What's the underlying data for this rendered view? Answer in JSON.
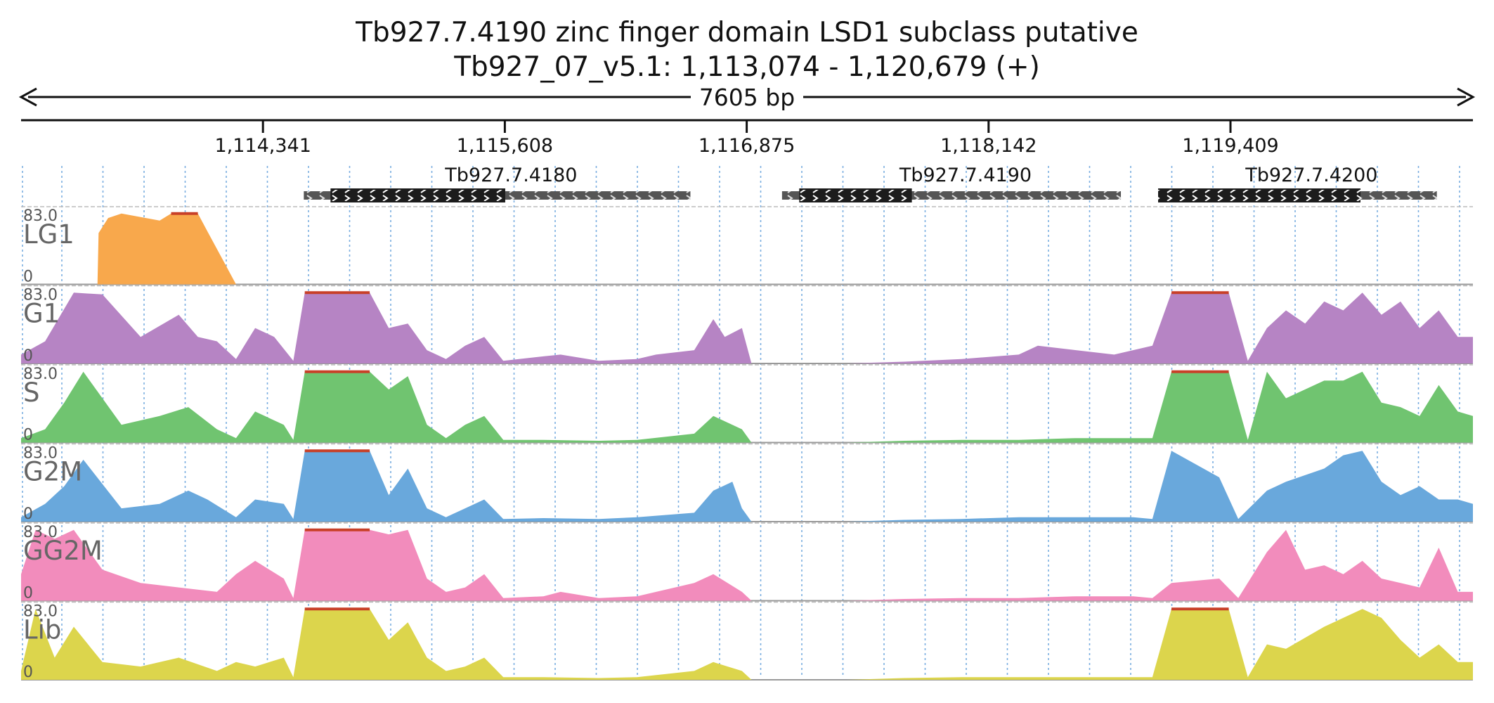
{
  "title_line1": "Tb927.7.4190  zinc finger domain  LSD1 subclass  putative",
  "title_line2": "Tb927_07_v5.1: 1,113,074 - 1,120,679 (+)",
  "span": {
    "label": "7605 bp",
    "start": 1113074,
    "end": 1120679
  },
  "colors": {
    "LG1": "#f8a84c",
    "G1": "#b684c4",
    "S": "#70c470",
    "G2M": "#69a8dc",
    "GG2M": "#f28cbc",
    "Lib": "#dcd54c",
    "clip": "#c84028",
    "gene_cds": "#1c1c1c",
    "gene_utr": "#555555",
    "grid": "#7aaee0"
  },
  "ruler": {
    "ticks": [
      {
        "pos": 1114341,
        "label": "1,114,341"
      },
      {
        "pos": 1115608,
        "label": "1,115,608"
      },
      {
        "pos": 1116875,
        "label": "1,116,875"
      },
      {
        "pos": 1118142,
        "label": "1,118,142"
      },
      {
        "pos": 1119409,
        "label": "1,119,409"
      }
    ]
  },
  "genes": [
    {
      "name": "Tb927.7.4180",
      "start": 1114555,
      "end": 1116580,
      "cds_start": 1114695,
      "cds_end": 1115610
    },
    {
      "name": "Tb927.7.4190",
      "start": 1117060,
      "end": 1118835,
      "cds_start": 1117150,
      "cds_end": 1117740
    },
    {
      "name": "Tb927.7.4200",
      "start": 1119030,
      "end": 1120490,
      "cds_start": 1119030,
      "cds_end": 1120090
    }
  ],
  "tracks": [
    {
      "name": "LG1",
      "ymax": "83.0",
      "ymin": "0"
    },
    {
      "name": "G1",
      "ymax": "83.0",
      "ymin": "0"
    },
    {
      "name": "S",
      "ymax": "83.0",
      "ymin": "0"
    },
    {
      "name": "G2M",
      "ymax": "83.0",
      "ymin": "0"
    },
    {
      "name": "GG2M",
      "ymax": "83.0",
      "ymin": "0"
    },
    {
      "name": "Lib",
      "ymax": "83.0",
      "ymin": "0"
    }
  ],
  "coverage": {
    "ymax": 83,
    "LG1": [
      [
        1113474,
        0
      ],
      [
        1113480,
        58
      ],
      [
        1113530,
        75
      ],
      [
        1113600,
        80
      ],
      [
        1113700,
        76
      ],
      [
        1113800,
        72
      ],
      [
        1113860,
        80
      ],
      [
        1114000,
        80
      ],
      [
        1114050,
        60
      ],
      [
        1114150,
        20
      ],
      [
        1114200,
        0
      ]
    ],
    "G1": [
      [
        1113074,
        10
      ],
      [
        1113200,
        25
      ],
      [
        1113350,
        80
      ],
      [
        1113500,
        78
      ],
      [
        1113700,
        30
      ],
      [
        1113900,
        55
      ],
      [
        1114000,
        30
      ],
      [
        1114100,
        25
      ],
      [
        1114200,
        5
      ],
      [
        1114300,
        40
      ],
      [
        1114400,
        30
      ],
      [
        1114500,
        3
      ],
      [
        1114560,
        80
      ],
      [
        1114900,
        80
      ],
      [
        1115000,
        40
      ],
      [
        1115100,
        45
      ],
      [
        1115200,
        15
      ],
      [
        1115300,
        5
      ],
      [
        1115400,
        20
      ],
      [
        1115500,
        30
      ],
      [
        1115600,
        3
      ],
      [
        1115810,
        8
      ],
      [
        1115900,
        10
      ],
      [
        1116100,
        3
      ],
      [
        1116300,
        5
      ],
      [
        1116400,
        10
      ],
      [
        1116600,
        15
      ],
      [
        1116700,
        50
      ],
      [
        1116760,
        30
      ],
      [
        1116850,
        40
      ],
      [
        1116900,
        0
      ],
      [
        1117400,
        0
      ],
      [
        1117700,
        2
      ],
      [
        1118000,
        5
      ],
      [
        1118300,
        10
      ],
      [
        1118400,
        20
      ],
      [
        1118600,
        15
      ],
      [
        1118800,
        10
      ],
      [
        1119000,
        20
      ],
      [
        1119100,
        80
      ],
      [
        1119400,
        80
      ],
      [
        1119500,
        3
      ],
      [
        1119600,
        40
      ],
      [
        1119700,
        60
      ],
      [
        1119800,
        45
      ],
      [
        1119900,
        70
      ],
      [
        1120000,
        60
      ],
      [
        1120100,
        80
      ],
      [
        1120200,
        55
      ],
      [
        1120300,
        70
      ],
      [
        1120400,
        40
      ],
      [
        1120500,
        60
      ],
      [
        1120600,
        30
      ],
      [
        1120679,
        30
      ]
    ],
    "S": [
      [
        1113074,
        5
      ],
      [
        1113200,
        15
      ],
      [
        1113300,
        45
      ],
      [
        1113400,
        80
      ],
      [
        1113600,
        20
      ],
      [
        1113800,
        30
      ],
      [
        1113950,
        40
      ],
      [
        1114100,
        15
      ],
      [
        1114200,
        5
      ],
      [
        1114300,
        35
      ],
      [
        1114450,
        20
      ],
      [
        1114500,
        3
      ],
      [
        1114560,
        80
      ],
      [
        1114900,
        80
      ],
      [
        1115000,
        60
      ],
      [
        1115100,
        75
      ],
      [
        1115200,
        20
      ],
      [
        1115300,
        5
      ],
      [
        1115400,
        20
      ],
      [
        1115500,
        30
      ],
      [
        1115600,
        3
      ],
      [
        1115810,
        3
      ],
      [
        1116100,
        2
      ],
      [
        1116300,
        3
      ],
      [
        1116600,
        10
      ],
      [
        1116700,
        30
      ],
      [
        1116850,
        15
      ],
      [
        1116900,
        0
      ],
      [
        1117400,
        0
      ],
      [
        1117700,
        2
      ],
      [
        1118000,
        3
      ],
      [
        1118300,
        3
      ],
      [
        1118600,
        5
      ],
      [
        1118900,
        5
      ],
      [
        1119000,
        5
      ],
      [
        1119100,
        80
      ],
      [
        1119400,
        80
      ],
      [
        1119500,
        3
      ],
      [
        1119600,
        80
      ],
      [
        1119700,
        50
      ],
      [
        1119900,
        70
      ],
      [
        1120000,
        70
      ],
      [
        1120100,
        80
      ],
      [
        1120200,
        45
      ],
      [
        1120300,
        40
      ],
      [
        1120400,
        30
      ],
      [
        1120500,
        65
      ],
      [
        1120600,
        35
      ],
      [
        1120679,
        30
      ]
    ],
    "G2M": [
      [
        1113074,
        5
      ],
      [
        1113200,
        20
      ],
      [
        1113300,
        40
      ],
      [
        1113400,
        70
      ],
      [
        1113600,
        15
      ],
      [
        1113800,
        20
      ],
      [
        1113950,
        35
      ],
      [
        1114050,
        25
      ],
      [
        1114200,
        5
      ],
      [
        1114300,
        25
      ],
      [
        1114450,
        20
      ],
      [
        1114500,
        3
      ],
      [
        1114560,
        80
      ],
      [
        1114900,
        80
      ],
      [
        1115000,
        30
      ],
      [
        1115100,
        60
      ],
      [
        1115200,
        15
      ],
      [
        1115300,
        5
      ],
      [
        1115400,
        15
      ],
      [
        1115500,
        25
      ],
      [
        1115600,
        3
      ],
      [
        1115810,
        4
      ],
      [
        1116100,
        3
      ],
      [
        1116300,
        5
      ],
      [
        1116600,
        10
      ],
      [
        1116700,
        35
      ],
      [
        1116800,
        45
      ],
      [
        1116850,
        15
      ],
      [
        1116900,
        0
      ],
      [
        1117400,
        0
      ],
      [
        1117700,
        2
      ],
      [
        1118000,
        3
      ],
      [
        1118300,
        5
      ],
      [
        1118600,
        5
      ],
      [
        1118900,
        5
      ],
      [
        1119000,
        3
      ],
      [
        1119100,
        80
      ],
      [
        1119350,
        50
      ],
      [
        1119450,
        3
      ],
      [
        1119600,
        35
      ],
      [
        1119700,
        45
      ],
      [
        1119900,
        60
      ],
      [
        1120000,
        75
      ],
      [
        1120100,
        80
      ],
      [
        1120200,
        45
      ],
      [
        1120300,
        30
      ],
      [
        1120400,
        40
      ],
      [
        1120500,
        25
      ],
      [
        1120600,
        25
      ],
      [
        1120679,
        20
      ]
    ],
    "GG2M": [
      [
        1113074,
        30
      ],
      [
        1113150,
        80
      ],
      [
        1113250,
        70
      ],
      [
        1113350,
        80
      ],
      [
        1113500,
        35
      ],
      [
        1113700,
        20
      ],
      [
        1113900,
        15
      ],
      [
        1114100,
        10
      ],
      [
        1114200,
        30
      ],
      [
        1114300,
        45
      ],
      [
        1114450,
        25
      ],
      [
        1114500,
        3
      ],
      [
        1114560,
        80
      ],
      [
        1114900,
        80
      ],
      [
        1115000,
        75
      ],
      [
        1115100,
        80
      ],
      [
        1115200,
        25
      ],
      [
        1115300,
        10
      ],
      [
        1115400,
        15
      ],
      [
        1115500,
        30
      ],
      [
        1115600,
        3
      ],
      [
        1115810,
        5
      ],
      [
        1115900,
        10
      ],
      [
        1116100,
        3
      ],
      [
        1116300,
        5
      ],
      [
        1116600,
        20
      ],
      [
        1116700,
        30
      ],
      [
        1116850,
        10
      ],
      [
        1116900,
        0
      ],
      [
        1117400,
        0
      ],
      [
        1117700,
        2
      ],
      [
        1118000,
        3
      ],
      [
        1118300,
        3
      ],
      [
        1118600,
        5
      ],
      [
        1118900,
        5
      ],
      [
        1119000,
        3
      ],
      [
        1119100,
        20
      ],
      [
        1119350,
        25
      ],
      [
        1119450,
        3
      ],
      [
        1119600,
        55
      ],
      [
        1119700,
        80
      ],
      [
        1119800,
        35
      ],
      [
        1119900,
        40
      ],
      [
        1120000,
        30
      ],
      [
        1120100,
        45
      ],
      [
        1120200,
        25
      ],
      [
        1120300,
        20
      ],
      [
        1120400,
        15
      ],
      [
        1120500,
        60
      ],
      [
        1120600,
        10
      ],
      [
        1120679,
        10
      ]
    ],
    "Lib": [
      [
        1113074,
        10
      ],
      [
        1113150,
        80
      ],
      [
        1113250,
        25
      ],
      [
        1113350,
        60
      ],
      [
        1113500,
        20
      ],
      [
        1113700,
        15
      ],
      [
        1113900,
        25
      ],
      [
        1114100,
        10
      ],
      [
        1114200,
        20
      ],
      [
        1114300,
        15
      ],
      [
        1114450,
        25
      ],
      [
        1114500,
        3
      ],
      [
        1114560,
        80
      ],
      [
        1114900,
        80
      ],
      [
        1115000,
        45
      ],
      [
        1115100,
        65
      ],
      [
        1115200,
        25
      ],
      [
        1115300,
        10
      ],
      [
        1115400,
        15
      ],
      [
        1115500,
        25
      ],
      [
        1115600,
        3
      ],
      [
        1115810,
        3
      ],
      [
        1116100,
        2
      ],
      [
        1116300,
        3
      ],
      [
        1116600,
        10
      ],
      [
        1116700,
        20
      ],
      [
        1116850,
        10
      ],
      [
        1116900,
        0
      ],
      [
        1117400,
        0
      ],
      [
        1117700,
        2
      ],
      [
        1118000,
        3
      ],
      [
        1118300,
        3
      ],
      [
        1118600,
        3
      ],
      [
        1118900,
        3
      ],
      [
        1119000,
        3
      ],
      [
        1119100,
        80
      ],
      [
        1119400,
        80
      ],
      [
        1119500,
        3
      ],
      [
        1119600,
        40
      ],
      [
        1119700,
        35
      ],
      [
        1119900,
        60
      ],
      [
        1120000,
        70
      ],
      [
        1120100,
        80
      ],
      [
        1120200,
        70
      ],
      [
        1120300,
        45
      ],
      [
        1120400,
        25
      ],
      [
        1120500,
        40
      ],
      [
        1120600,
        20
      ],
      [
        1120679,
        20
      ]
    ]
  }
}
